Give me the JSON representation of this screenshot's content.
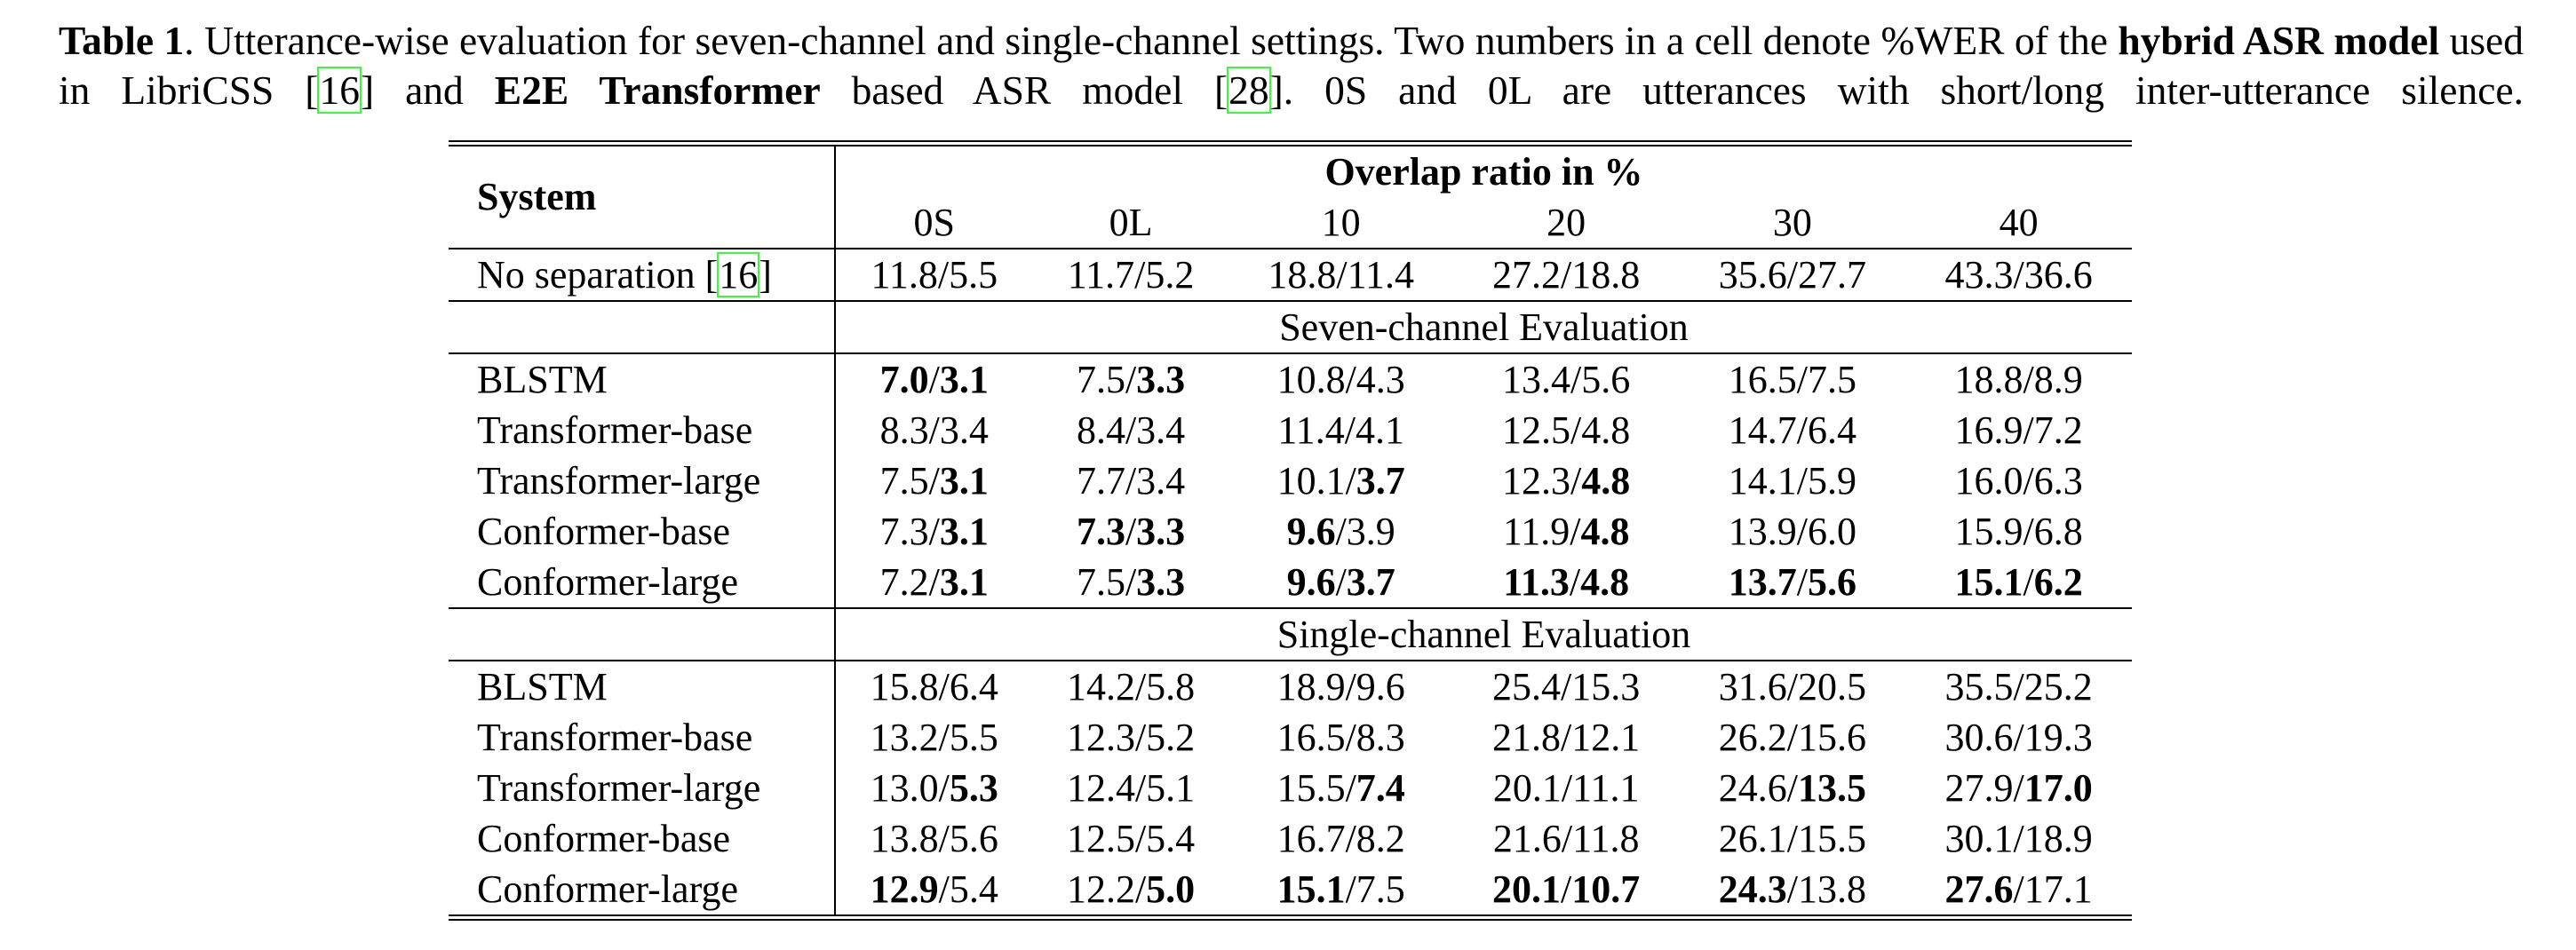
{
  "caption": [
    {
      "text": "Table 1",
      "style": "bold"
    },
    {
      "text": ".  Utterance-wise evaluation for seven-channel and single-channel settings. Two numbers in a cell denote %WER of the "
    },
    {
      "text": "hybrid ASR model",
      "style": "bold"
    },
    {
      "text": " used in LibriCSS ["
    },
    {
      "text": "16",
      "style": "cite"
    },
    {
      "text": "] and "
    },
    {
      "text": "E2E Transformer",
      "style": "bold"
    },
    {
      "text": " based ASR model ["
    },
    {
      "text": "28",
      "style": "cite"
    },
    {
      "text": "]. 0S and 0L are utterances with short/long inter-utterance silence."
    }
  ],
  "table": {
    "system_header": "System",
    "group_header": "Overlap ratio in %",
    "conditions": [
      "0S",
      "0L",
      "10",
      "20",
      "30",
      "40"
    ],
    "separator": "/",
    "baseline": {
      "label": [
        {
          "text": "No separation ["
        },
        {
          "text": "16",
          "style": "cite"
        },
        {
          "text": "]"
        }
      ],
      "cells": [
        {
          "hybrid": "11.8",
          "e2e": "5.5"
        },
        {
          "hybrid": "11.7",
          "e2e": "5.2"
        },
        {
          "hybrid": "18.8",
          "e2e": "11.4"
        },
        {
          "hybrid": "27.2",
          "e2e": "18.8"
        },
        {
          "hybrid": "35.6",
          "e2e": "27.7"
        },
        {
          "hybrid": "43.3",
          "e2e": "36.6"
        }
      ]
    },
    "sections": [
      {
        "title": "Seven-channel Evaluation",
        "rows": [
          {
            "label": "BLSTM",
            "cells": [
              {
                "hybrid": "7.0",
                "e2e": "3.1",
                "bold": [
                  "hybrid",
                  "e2e"
                ]
              },
              {
                "hybrid": "7.5",
                "e2e": "3.3",
                "bold": [
                  "e2e"
                ]
              },
              {
                "hybrid": "10.8",
                "e2e": "4.3"
              },
              {
                "hybrid": "13.4",
                "e2e": "5.6"
              },
              {
                "hybrid": "16.5",
                "e2e": "7.5"
              },
              {
                "hybrid": "18.8",
                "e2e": "8.9"
              }
            ]
          },
          {
            "label": "Transformer-base",
            "cells": [
              {
                "hybrid": "8.3",
                "e2e": "3.4"
              },
              {
                "hybrid": "8.4",
                "e2e": "3.4"
              },
              {
                "hybrid": "11.4",
                "e2e": "4.1"
              },
              {
                "hybrid": "12.5",
                "e2e": "4.8"
              },
              {
                "hybrid": "14.7",
                "e2e": "6.4"
              },
              {
                "hybrid": "16.9",
                "e2e": "7.2"
              }
            ]
          },
          {
            "label": "Transformer-large",
            "cells": [
              {
                "hybrid": "7.5",
                "e2e": "3.1",
                "bold": [
                  "e2e"
                ]
              },
              {
                "hybrid": "7.7",
                "e2e": "3.4"
              },
              {
                "hybrid": "10.1",
                "e2e": "3.7",
                "bold": [
                  "e2e"
                ]
              },
              {
                "hybrid": "12.3",
                "e2e": "4.8",
                "bold": [
                  "e2e"
                ]
              },
              {
                "hybrid": "14.1",
                "e2e": "5.9"
              },
              {
                "hybrid": "16.0",
                "e2e": "6.3"
              }
            ]
          },
          {
            "label": "Conformer-base",
            "cells": [
              {
                "hybrid": "7.3",
                "e2e": "3.1",
                "bold": [
                  "e2e"
                ]
              },
              {
                "hybrid": "7.3",
                "e2e": "3.3",
                "bold": [
                  "hybrid",
                  "e2e"
                ]
              },
              {
                "hybrid": "9.6",
                "e2e": "3.9",
                "bold": [
                  "hybrid"
                ]
              },
              {
                "hybrid": "11.9",
                "e2e": "4.8",
                "bold": [
                  "e2e"
                ]
              },
              {
                "hybrid": "13.9",
                "e2e": "6.0"
              },
              {
                "hybrid": "15.9",
                "e2e": "6.8"
              }
            ]
          },
          {
            "label": "Conformer-large",
            "cells": [
              {
                "hybrid": "7.2",
                "e2e": "3.1",
                "bold": [
                  "e2e"
                ]
              },
              {
                "hybrid": "7.5",
                "e2e": "3.3",
                "bold": [
                  "e2e"
                ]
              },
              {
                "hybrid": "9.6",
                "e2e": "3.7",
                "bold": [
                  "hybrid",
                  "e2e"
                ]
              },
              {
                "hybrid": "11.3",
                "e2e": "4.8",
                "bold": [
                  "hybrid",
                  "e2e"
                ]
              },
              {
                "hybrid": "13.7",
                "e2e": "5.6",
                "bold": [
                  "hybrid",
                  "e2e"
                ]
              },
              {
                "hybrid": "15.1",
                "e2e": "6.2",
                "bold": [
                  "hybrid",
                  "e2e"
                ]
              }
            ]
          }
        ]
      },
      {
        "title": "Single-channel Evaluation",
        "rows": [
          {
            "label": "BLSTM",
            "cells": [
              {
                "hybrid": "15.8",
                "e2e": "6.4"
              },
              {
                "hybrid": "14.2",
                "e2e": "5.8"
              },
              {
                "hybrid": "18.9",
                "e2e": "9.6"
              },
              {
                "hybrid": "25.4",
                "e2e": "15.3"
              },
              {
                "hybrid": "31.6",
                "e2e": "20.5"
              },
              {
                "hybrid": "35.5",
                "e2e": "25.2"
              }
            ]
          },
          {
            "label": "Transformer-base",
            "cells": [
              {
                "hybrid": "13.2",
                "e2e": "5.5"
              },
              {
                "hybrid": "12.3",
                "e2e": "5.2"
              },
              {
                "hybrid": "16.5",
                "e2e": "8.3"
              },
              {
                "hybrid": "21.8",
                "e2e": "12.1"
              },
              {
                "hybrid": "26.2",
                "e2e": "15.6"
              },
              {
                "hybrid": "30.6",
                "e2e": "19.3"
              }
            ]
          },
          {
            "label": "Transformer-large",
            "cells": [
              {
                "hybrid": "13.0",
                "e2e": "5.3",
                "bold": [
                  "e2e"
                ]
              },
              {
                "hybrid": "12.4",
                "e2e": "5.1"
              },
              {
                "hybrid": "15.5",
                "e2e": "7.4",
                "bold": [
                  "e2e"
                ]
              },
              {
                "hybrid": "20.1",
                "e2e": "11.1"
              },
              {
                "hybrid": "24.6",
                "e2e": "13.5",
                "bold": [
                  "e2e"
                ]
              },
              {
                "hybrid": "27.9",
                "e2e": "17.0",
                "bold": [
                  "e2e"
                ]
              }
            ]
          },
          {
            "label": "Conformer-base",
            "cells": [
              {
                "hybrid": "13.8",
                "e2e": "5.6"
              },
              {
                "hybrid": "12.5",
                "e2e": "5.4"
              },
              {
                "hybrid": "16.7",
                "e2e": "8.2"
              },
              {
                "hybrid": "21.6",
                "e2e": "11.8"
              },
              {
                "hybrid": "26.1",
                "e2e": "15.5"
              },
              {
                "hybrid": "30.1",
                "e2e": "18.9"
              }
            ]
          },
          {
            "label": "Conformer-large",
            "cells": [
              {
                "hybrid": "12.9",
                "e2e": "5.4",
                "bold": [
                  "hybrid"
                ]
              },
              {
                "hybrid": "12.2",
                "e2e": "5.0",
                "bold": [
                  "e2e"
                ]
              },
              {
                "hybrid": "15.1",
                "e2e": "7.5",
                "bold": [
                  "hybrid"
                ]
              },
              {
                "hybrid": "20.1",
                "e2e": "10.7",
                "bold": [
                  "hybrid",
                  "e2e"
                ]
              },
              {
                "hybrid": "24.3",
                "e2e": "13.8",
                "bold": [
                  "hybrid"
                ]
              },
              {
                "hybrid": "27.6",
                "e2e": "17.1",
                "bold": [
                  "hybrid"
                ]
              }
            ]
          }
        ]
      }
    ]
  }
}
